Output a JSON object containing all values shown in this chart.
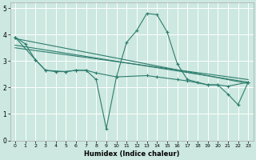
{
  "title": "",
  "xlabel": "Humidex (Indice chaleur)",
  "background_color": "#cce8e0",
  "grid_color": "#ffffff",
  "line_color": "#2e7d6e",
  "xlim": [
    -0.5,
    23.5
  ],
  "ylim": [
    0,
    5.2
  ],
  "xticks": [
    0,
    1,
    2,
    3,
    4,
    5,
    6,
    7,
    8,
    9,
    10,
    11,
    12,
    13,
    14,
    15,
    16,
    17,
    18,
    19,
    20,
    21,
    22,
    23
  ],
  "yticks": [
    0,
    1,
    2,
    3,
    4,
    5
  ],
  "main_x": [
    0,
    1,
    2,
    3,
    4,
    5,
    6,
    7,
    8,
    9,
    10,
    11,
    12,
    13,
    14,
    15,
    16,
    17,
    18,
    19,
    20,
    21,
    22,
    23
  ],
  "main_y": [
    3.9,
    3.65,
    3.05,
    2.65,
    2.6,
    2.6,
    2.65,
    2.65,
    2.3,
    0.45,
    2.4,
    3.7,
    4.15,
    4.8,
    4.75,
    4.1,
    2.9,
    2.3,
    2.2,
    2.1,
    2.1,
    1.75,
    1.35,
    2.2
  ],
  "smooth_x": [
    0,
    2,
    3,
    5,
    6,
    7,
    8,
    10,
    13,
    14,
    16,
    17,
    19,
    20,
    21,
    23
  ],
  "smooth_y": [
    3.9,
    3.05,
    2.65,
    2.6,
    2.65,
    2.65,
    2.55,
    2.4,
    2.45,
    2.4,
    2.3,
    2.25,
    2.1,
    2.1,
    2.05,
    2.2
  ],
  "trend1_x": [
    0,
    23
  ],
  "trend1_y": [
    3.85,
    2.15
  ],
  "trend2_x": [
    0,
    23
  ],
  "trend2_y": [
    3.6,
    2.2
  ],
  "trend3_x": [
    0,
    23
  ],
  "trend3_y": [
    3.5,
    2.3
  ]
}
